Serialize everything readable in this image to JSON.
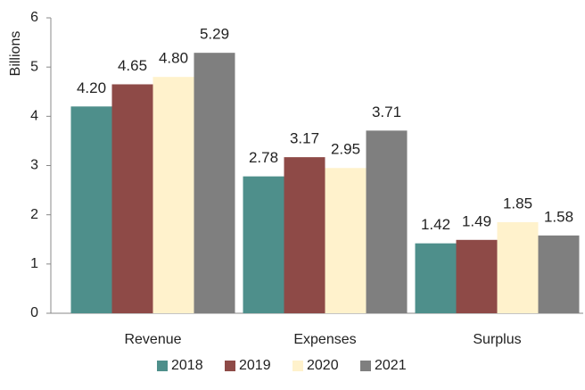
{
  "chart_data": {
    "type": "bar",
    "y_label": "Billions",
    "categories": [
      "Revenue",
      "Expenses",
      "Surplus"
    ],
    "series": [
      {
        "name": "2018",
        "color": "#4e8f8b",
        "values": [
          4.2,
          2.78,
          1.42
        ],
        "value_labels": [
          "4.20",
          "2.78",
          "1.42"
        ]
      },
      {
        "name": "2019",
        "color": "#8e4a47",
        "values": [
          4.65,
          3.17,
          1.49
        ],
        "value_labels": [
          "4.65",
          "3.17",
          "1.49"
        ]
      },
      {
        "name": "2020",
        "color": "#fff2cc",
        "values": [
          4.8,
          2.95,
          1.85
        ],
        "value_labels": [
          "4.80",
          "2.95",
          "1.85"
        ]
      },
      {
        "name": "2021",
        "color": "#7f7f7f",
        "values": [
          5.29,
          3.71,
          1.58
        ],
        "value_labels": [
          "5.29",
          "3.71",
          "1.58"
        ]
      }
    ],
    "ylim": [
      0,
      6
    ],
    "yticks": [
      0,
      1,
      2,
      3,
      4,
      5,
      6
    ],
    "grid": false,
    "legend": "bottom"
  }
}
